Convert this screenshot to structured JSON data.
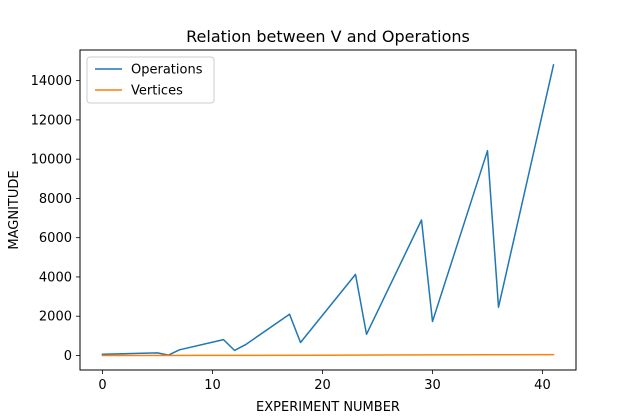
{
  "chart_data": {
    "type": "line",
    "title": "Relation between V and Operations",
    "xlabel": "EXPERIMENT NUMBER",
    "ylabel": "MAGNITUDE",
    "xlim": [
      -2.05,
      43.05
    ],
    "ylim": [
      -740,
      15560
    ],
    "xticks": [
      0,
      10,
      20,
      30,
      40
    ],
    "yticks": [
      0,
      2000,
      4000,
      6000,
      8000,
      10000,
      12000,
      14000
    ],
    "xtick_labels": [
      "0",
      "10",
      "20",
      "30",
      "40"
    ],
    "ytick_labels": [
      "0",
      "2000",
      "4000",
      "6000",
      "8000",
      "10000",
      "12000",
      "14000"
    ],
    "grid": false,
    "legend_position": "top-left",
    "series": [
      {
        "name": "Operations",
        "color": "#1f77b4",
        "x": [
          0,
          5,
          6,
          7,
          11,
          12,
          13,
          17,
          18,
          23,
          24,
          29,
          30,
          35,
          36,
          41
        ],
        "y": [
          60,
          130,
          20,
          290,
          810,
          260,
          550,
          2100,
          660,
          4130,
          1080,
          6900,
          1730,
          10430,
          2460,
          14800
        ]
      },
      {
        "name": "Vertices",
        "color": "#ff7f0e",
        "x": [
          0,
          10,
          20,
          30,
          35,
          41
        ],
        "y": [
          0,
          5,
          15,
          28,
          35,
          42
        ]
      }
    ]
  }
}
